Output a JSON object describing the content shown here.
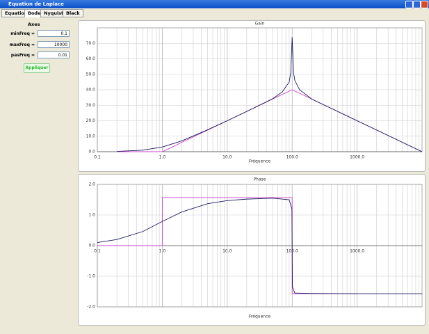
{
  "window": {
    "title": "Equation de Laplace"
  },
  "tabs": [
    "Equation",
    "Bode",
    "Nyquist",
    "Black"
  ],
  "form": {
    "heading": "Axes",
    "fields": [
      {
        "label": "minFreq =",
        "value": 0.1
      },
      {
        "label": "maxFreq =",
        "value": 10000
      },
      {
        "label": "pasFreq =",
        "value": 0.01
      }
    ],
    "button": "Appliquer"
  },
  "chart_data": [
    {
      "type": "line",
      "title": "Gain",
      "xlabel": "Fréquence",
      "xscale": "log",
      "grid": true,
      "xlim": [
        0.1,
        10000
      ],
      "xticks": [
        0.1,
        {
          "value": 1,
          "label": "1.0"
        },
        {
          "value": 10,
          "label": "10.0"
        },
        {
          "value": 100,
          "label": "100.0"
        },
        {
          "value": 1000,
          "label": "1000.0"
        }
      ],
      "ylim": [
        0,
        80
      ],
      "yticks": [
        {
          "value": 0,
          "label": "0.0"
        },
        {
          "value": 10,
          "label": "10.0"
        },
        {
          "value": 20,
          "label": "20.0"
        },
        {
          "value": 30,
          "label": "30.0"
        },
        {
          "value": 40,
          "label": "40.0"
        },
        {
          "value": 50,
          "label": "50.0"
        },
        {
          "value": 60,
          "label": "60.0"
        },
        {
          "value": 70,
          "label": "70.0"
        }
      ],
      "series": [
        {
          "color": "#cc44cc",
          "x": [
            0.2,
            1,
            100,
            10000
          ],
          "values": [
            0,
            0,
            40,
            0
          ]
        },
        {
          "color": "#1a1a5e",
          "x": [
            0.2,
            0.5,
            1,
            2,
            5,
            10,
            20,
            50,
            70,
            90,
            95,
            100,
            105,
            110,
            130,
            200,
            500,
            1000,
            2000,
            5000,
            10000
          ],
          "values": [
            0.2,
            1,
            3,
            7,
            14.2,
            20,
            26,
            34.2,
            38.5,
            45,
            51,
            74,
            51,
            46,
            40,
            34,
            26,
            20,
            14,
            6,
            0
          ]
        }
      ]
    },
    {
      "type": "line",
      "title": "Phase",
      "xlabel": "Fréquence",
      "xscale": "log",
      "grid": true,
      "xlim": [
        0.1,
        10000
      ],
      "xticks": [
        0.1,
        {
          "value": 1,
          "label": "1.0"
        },
        {
          "value": 10,
          "label": "10.0"
        },
        {
          "value": 100,
          "label": "100.0"
        },
        {
          "value": 1000,
          "label": "1000.0"
        }
      ],
      "ylim": [
        -2,
        2
      ],
      "yticks": [
        {
          "value": -2,
          "label": "-2.0"
        },
        {
          "value": -1,
          "label": "-1.0"
        },
        {
          "value": 0,
          "label": "0.0"
        },
        {
          "value": 1,
          "label": "1.0"
        },
        {
          "value": 2,
          "label": "2.0"
        }
      ],
      "series": [
        {
          "color": "#cc44cc",
          "x": [
            0.1,
            1,
            1,
            100,
            100,
            1000
          ],
          "values": [
            0,
            0,
            1.57,
            1.57,
            -1.57,
            -1.57
          ]
        },
        {
          "color": "#1a1a5e",
          "x": [
            0.1,
            0.2,
            0.5,
            1,
            2,
            5,
            10,
            20,
            50,
            90,
            99,
            101,
            110,
            200,
            1000,
            10000
          ],
          "values": [
            0.1,
            0.2,
            0.46,
            0.79,
            1.1,
            1.37,
            1.47,
            1.52,
            1.55,
            1.5,
            1.2,
            -1.35,
            -1.55,
            -1.56,
            -1.57,
            -1.57
          ]
        }
      ]
    }
  ]
}
